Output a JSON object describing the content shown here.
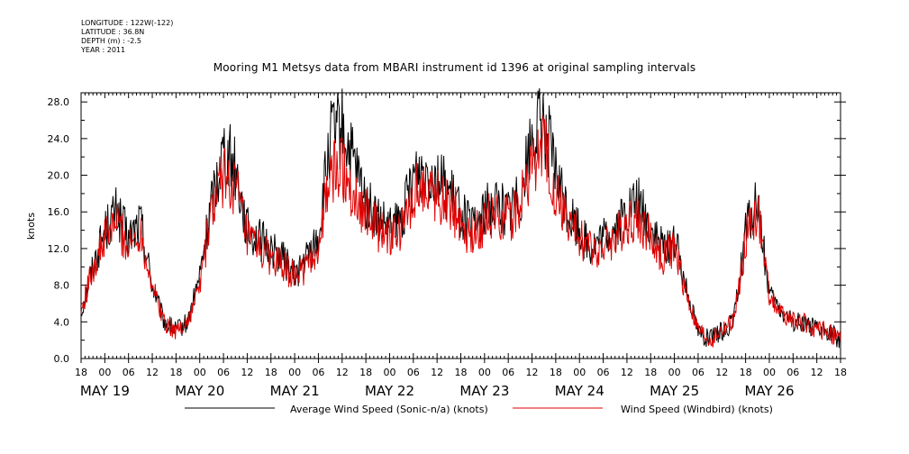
{
  "header": {
    "longitude": "LONGITUDE : 122W(-122)",
    "latitude": "LATITUDE : 36.8N",
    "depth": "DEPTH (m) : -2.5",
    "year": "YEAR : 2011"
  },
  "chart_data": {
    "type": "line",
    "title": "Mooring M1 Metsys data from MBARI instrument id 1396 at original sampling intervals",
    "ylabel": "knots",
    "ylim": [
      0,
      29
    ],
    "y_ticks": [
      "0.0",
      "4.0",
      "8.0",
      "12.0",
      "16.0",
      "20.0",
      "24.0",
      "28.0"
    ],
    "x_start": "2011-05-18T18:00",
    "x_end": "2011-05-26T18:00",
    "hour_labels": [
      "18",
      "00",
      "06",
      "12",
      "18",
      "00",
      "06",
      "12",
      "18",
      "00",
      "06",
      "12",
      "18",
      "00",
      "06",
      "12",
      "18",
      "00",
      "06",
      "12",
      "18",
      "00",
      "06",
      "12",
      "18",
      "00",
      "06",
      "12",
      "18",
      "00",
      "06",
      "12",
      "18"
    ],
    "date_labels": [
      "MAY 19",
      "MAY 20",
      "MAY 21",
      "MAY 22",
      "MAY 23",
      "MAY 24",
      "MAY 25",
      "MAY 26"
    ],
    "legend": [
      "Average Wind Speed (Sonic-n/a) (knots)",
      "Wind Speed (Windbird) (knots)"
    ],
    "colors": {
      "sonic": "#000000",
      "windbird": "#e00000"
    },
    "series": [
      {
        "name": "Average Wind Speed (Sonic-n/a) (knots)",
        "x_hours": [
          0,
          3,
          6,
          9,
          12,
          15,
          18,
          21,
          24,
          27,
          30,
          33,
          36,
          39,
          42,
          45,
          48,
          51,
          54,
          57,
          60,
          63,
          66,
          69,
          72,
          75,
          78,
          81,
          84,
          87,
          90,
          93,
          96,
          99,
          102,
          105,
          108,
          111,
          114,
          117,
          120,
          123,
          126,
          129,
          132,
          135,
          138,
          141,
          144,
          147,
          150,
          153,
          156,
          159,
          162,
          165,
          168,
          171,
          174,
          177,
          180,
          183,
          186,
          189,
          192
        ],
        "values": [
          5,
          10,
          14,
          16,
          13,
          15,
          8,
          4,
          3,
          4,
          9,
          17,
          23,
          21,
          14,
          13,
          12,
          11,
          9,
          11,
          13,
          24,
          25,
          21,
          17,
          15,
          14,
          15,
          20,
          21,
          20,
          18,
          16,
          14,
          16,
          17,
          16,
          18,
          24,
          26,
          20,
          16,
          14,
          12,
          13,
          14,
          16,
          17,
          14,
          12,
          13,
          8,
          3,
          2,
          3,
          4,
          14,
          17,
          7,
          5,
          4,
          4,
          3,
          3,
          2
        ]
      },
      {
        "name": "Wind Speed (Windbird) (knots)",
        "x_hours": [
          0,
          3,
          6,
          9,
          12,
          15,
          18,
          21,
          24,
          27,
          30,
          33,
          36,
          39,
          42,
          45,
          48,
          51,
          54,
          57,
          60,
          63,
          66,
          69,
          72,
          75,
          78,
          81,
          84,
          87,
          90,
          93,
          96,
          99,
          102,
          105,
          108,
          111,
          114,
          117,
          120,
          123,
          126,
          129,
          132,
          135,
          138,
          141,
          144,
          147,
          150,
          153,
          156,
          159,
          162,
          165,
          168,
          171,
          174,
          177,
          180,
          183,
          186,
          189,
          192
        ],
        "values": [
          5,
          10,
          13,
          15,
          12,
          14,
          8,
          4,
          3,
          4,
          8,
          16,
          20,
          19,
          13,
          12,
          11,
          10,
          9,
          10,
          12,
          20,
          21,
          18,
          16,
          14,
          13,
          14,
          18,
          19,
          18,
          17,
          15,
          13,
          15,
          16,
          15,
          17,
          21,
          23,
          18,
          15,
          13,
          12,
          12,
          13,
          15,
          15,
          13,
          11,
          12,
          7,
          3,
          2,
          3,
          4,
          13,
          16,
          7,
          5,
          4,
          4,
          3,
          3,
          2
        ]
      }
    ]
  }
}
